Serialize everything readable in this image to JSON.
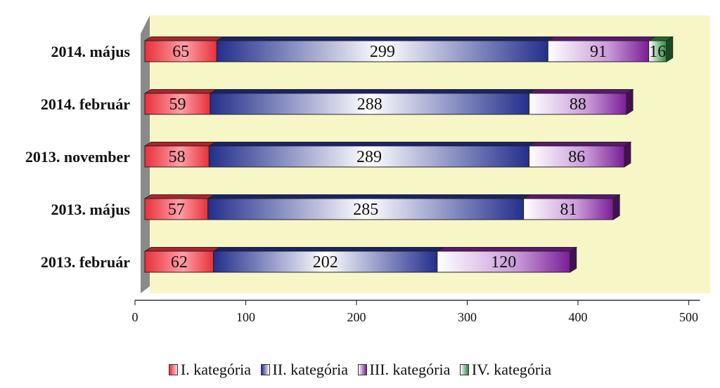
{
  "chart_data": {
    "type": "bar",
    "orientation": "horizontal",
    "stacked": true,
    "categories": [
      "2014. május",
      "2014. február",
      "2013. november",
      "2013. május",
      "2013. február"
    ],
    "series": [
      {
        "name": "I. kategória",
        "values": [
          65,
          59,
          58,
          57,
          62
        ]
      },
      {
        "name": "II. kategória",
        "values": [
          299,
          288,
          289,
          285,
          202
        ]
      },
      {
        "name": "III. kategória",
        "values": [
          91,
          88,
          86,
          81,
          120
        ]
      },
      {
        "name": "IV. kategória",
        "values": [
          16,
          0,
          0,
          0,
          0
        ]
      }
    ],
    "xlim": [
      0,
      500
    ],
    "xticks": [
      "0",
      "100",
      "200",
      "300",
      "400",
      "500"
    ],
    "grid": false,
    "legend_position": "bottom",
    "colors": {
      "plot_background": "#f7f6c6",
      "wall": "#8a8a8a",
      "series": [
        "#e8303a",
        "#232f8c",
        "#7a1e96",
        "#2f8a3e"
      ]
    }
  }
}
